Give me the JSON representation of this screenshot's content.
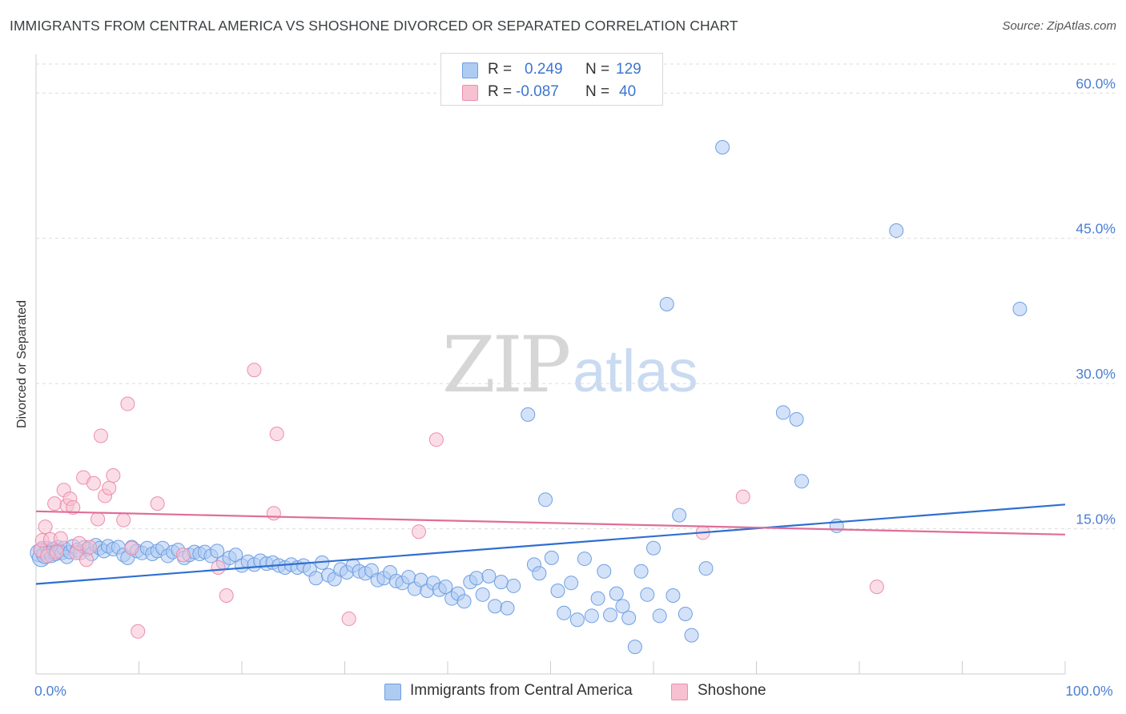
{
  "title": "IMMIGRANTS FROM CENTRAL AMERICA VS SHOSHONE DIVORCED OR SEPARATED CORRELATION CHART",
  "source": "Source: ZipAtlas.com",
  "watermark": {
    "zip": "ZIP",
    "atlas": "atlas"
  },
  "legend": {
    "rows": [
      {
        "r_label": "R =",
        "r_value": "0.249",
        "n_label": "N =",
        "n_value": "129",
        "color": "#aecbf2",
        "border": "#6f9fe3"
      },
      {
        "r_label": "R =",
        "r_value": "-0.087",
        "n_label": "N =",
        "n_value": "40",
        "color": "#f7c1d2",
        "border": "#eb8eae"
      }
    ]
  },
  "bottom_legend": [
    {
      "label": "Immigrants from Central America",
      "color": "#aecbf2",
      "border": "#6f9fe3"
    },
    {
      "label": "Shoshone",
      "color": "#f7c1d2",
      "border": "#eb8eae"
    }
  ],
  "chart_data": {
    "type": "scatter",
    "ylabel": "Divorced or Separated",
    "xlim": [
      0,
      100
    ],
    "ylim": [
      0,
      63
    ],
    "x_tick_labels": [
      {
        "value": 0,
        "label": "0.0%"
      },
      {
        "value": 100,
        "label": "100.0%"
      }
    ],
    "y_tick_labels": [
      {
        "value": 15,
        "label": "15.0%"
      },
      {
        "value": 30,
        "label": "30.0%"
      },
      {
        "value": 45,
        "label": "45.0%"
      },
      {
        "value": 60,
        "label": "60.0%"
      }
    ],
    "grid": "horizontal dashed",
    "series": [
      {
        "name": "Immigrants from Central America",
        "color": "#6f9fe3",
        "fill": "#aecbf2",
        "trend": {
          "x": [
            0,
            100
          ],
          "y": [
            9.3,
            17.5
          ]
        },
        "points": [
          [
            0.3,
            12.5
          ],
          [
            0.5,
            12.0
          ],
          [
            0.7,
            12.8
          ],
          [
            0.9,
            12.3
          ],
          [
            1.1,
            13.0
          ],
          [
            1.3,
            12.6
          ],
          [
            1.5,
            12.2
          ],
          [
            1.7,
            12.9
          ],
          [
            1.9,
            12.4
          ],
          [
            2.1,
            13.1
          ],
          [
            2.3,
            12.7
          ],
          [
            2.5,
            12.5
          ],
          [
            2.7,
            13.0
          ],
          [
            3.0,
            12.1
          ],
          [
            3.3,
            12.6
          ],
          [
            3.6,
            13.2
          ],
          [
            4.0,
            12.8
          ],
          [
            4.3,
            12.5
          ],
          [
            4.7,
            13.1
          ],
          [
            5.0,
            12.9
          ],
          [
            5.4,
            12.4
          ],
          [
            5.8,
            13.3
          ],
          [
            6.2,
            13.0
          ],
          [
            6.6,
            12.7
          ],
          [
            7.0,
            13.2
          ],
          [
            7.5,
            12.9
          ],
          [
            8.0,
            13.1
          ],
          [
            8.5,
            12.3
          ],
          [
            8.9,
            12.0
          ],
          [
            9.3,
            13.1
          ],
          [
            9.8,
            12.7
          ],
          [
            10.3,
            12.5
          ],
          [
            10.8,
            13.0
          ],
          [
            11.3,
            12.4
          ],
          [
            11.8,
            12.7
          ],
          [
            12.3,
            13.0
          ],
          [
            12.8,
            12.2
          ],
          [
            13.3,
            12.6
          ],
          [
            13.8,
            12.8
          ],
          [
            14.4,
            12.0
          ],
          [
            14.9,
            12.3
          ],
          [
            15.4,
            12.6
          ],
          [
            15.9,
            12.4
          ],
          [
            16.4,
            12.6
          ],
          [
            17.0,
            12.2
          ],
          [
            17.6,
            12.7
          ],
          [
            18.2,
            11.5
          ],
          [
            18.8,
            12.0
          ],
          [
            19.4,
            12.3
          ],
          [
            20.0,
            11.2
          ],
          [
            20.6,
            11.6
          ],
          [
            21.2,
            11.3
          ],
          [
            21.8,
            11.7
          ],
          [
            22.4,
            11.4
          ],
          [
            23.0,
            11.5
          ],
          [
            23.6,
            11.2
          ],
          [
            24.2,
            11.0
          ],
          [
            24.8,
            11.3
          ],
          [
            25.4,
            11.0
          ],
          [
            26.0,
            11.2
          ],
          [
            26.6,
            10.8
          ],
          [
            27.2,
            9.9
          ],
          [
            27.8,
            11.5
          ],
          [
            28.4,
            10.2
          ],
          [
            29.0,
            9.8
          ],
          [
            29.6,
            10.8
          ],
          [
            30.2,
            10.5
          ],
          [
            30.8,
            11.2
          ],
          [
            31.4,
            10.6
          ],
          [
            32.0,
            10.4
          ],
          [
            32.6,
            10.7
          ],
          [
            33.2,
            9.7
          ],
          [
            33.8,
            9.9
          ],
          [
            34.4,
            10.5
          ],
          [
            35.0,
            9.6
          ],
          [
            35.6,
            9.4
          ],
          [
            36.2,
            10.0
          ],
          [
            36.8,
            8.8
          ],
          [
            37.4,
            9.7
          ],
          [
            38.0,
            8.6
          ],
          [
            38.6,
            9.4
          ],
          [
            39.2,
            8.7
          ],
          [
            39.8,
            9.0
          ],
          [
            40.4,
            7.8
          ],
          [
            41.0,
            8.3
          ],
          [
            41.6,
            7.5
          ],
          [
            42.2,
            9.5
          ],
          [
            42.8,
            9.9
          ],
          [
            43.4,
            8.2
          ],
          [
            44.0,
            10.1
          ],
          [
            44.6,
            7.0
          ],
          [
            45.2,
            9.5
          ],
          [
            45.8,
            6.8
          ],
          [
            46.4,
            9.1
          ],
          [
            47.8,
            26.8
          ],
          [
            48.4,
            11.3
          ],
          [
            48.9,
            10.4
          ],
          [
            49.5,
            18.0
          ],
          [
            50.1,
            12.0
          ],
          [
            50.7,
            8.6
          ],
          [
            51.3,
            6.3
          ],
          [
            52.0,
            9.4
          ],
          [
            52.6,
            5.6
          ],
          [
            53.3,
            11.9
          ],
          [
            54.0,
            6.0
          ],
          [
            54.6,
            7.8
          ],
          [
            55.2,
            10.6
          ],
          [
            55.8,
            6.1
          ],
          [
            56.4,
            8.3
          ],
          [
            57.0,
            7.0
          ],
          [
            57.6,
            5.8
          ],
          [
            58.2,
            2.8
          ],
          [
            58.8,
            10.6
          ],
          [
            59.4,
            8.2
          ],
          [
            60.0,
            13.0
          ],
          [
            60.6,
            6.0
          ],
          [
            61.3,
            38.2
          ],
          [
            61.9,
            8.1
          ],
          [
            62.5,
            16.4
          ],
          [
            63.1,
            6.2
          ],
          [
            63.7,
            4.0
          ],
          [
            65.1,
            10.9
          ],
          [
            66.7,
            54.4
          ],
          [
            72.6,
            27.0
          ],
          [
            73.9,
            26.3
          ],
          [
            74.4,
            19.9
          ],
          [
            83.6,
            45.8
          ],
          [
            95.6,
            37.7
          ],
          [
            77.8,
            15.3
          ]
        ]
      },
      {
        "name": "Shoshone",
        "color": "#eb8eae",
        "fill": "#f7c1d2",
        "trend": {
          "x": [
            0,
            100
          ],
          "y": [
            16.8,
            14.4
          ]
        },
        "points": [
          [
            0.4,
            12.8
          ],
          [
            0.6,
            13.8
          ],
          [
            0.9,
            15.2
          ],
          [
            1.1,
            12.2
          ],
          [
            1.4,
            13.9
          ],
          [
            1.8,
            17.6
          ],
          [
            2.0,
            12.6
          ],
          [
            2.4,
            14.0
          ],
          [
            2.7,
            19.0
          ],
          [
            3.0,
            17.4
          ],
          [
            3.3,
            18.1
          ],
          [
            3.6,
            17.2
          ],
          [
            3.9,
            12.5
          ],
          [
            4.2,
            13.5
          ],
          [
            4.6,
            20.3
          ],
          [
            4.9,
            11.8
          ],
          [
            5.2,
            13.1
          ],
          [
            5.6,
            19.7
          ],
          [
            6.0,
            16.0
          ],
          [
            6.3,
            24.6
          ],
          [
            6.7,
            18.4
          ],
          [
            7.1,
            19.2
          ],
          [
            7.5,
            20.5
          ],
          [
            8.5,
            15.9
          ],
          [
            8.9,
            27.9
          ],
          [
            9.3,
            13.0
          ],
          [
            9.9,
            4.4
          ],
          [
            11.8,
            17.6
          ],
          [
            14.3,
            12.3
          ],
          [
            17.7,
            11.0
          ],
          [
            18.5,
            8.1
          ],
          [
            21.2,
            31.4
          ],
          [
            23.1,
            16.6
          ],
          [
            23.4,
            24.8
          ],
          [
            30.4,
            5.7
          ],
          [
            37.2,
            14.7
          ],
          [
            38.9,
            24.2
          ],
          [
            64.8,
            14.6
          ],
          [
            68.7,
            18.3
          ],
          [
            81.7,
            9.0
          ]
        ]
      }
    ]
  }
}
